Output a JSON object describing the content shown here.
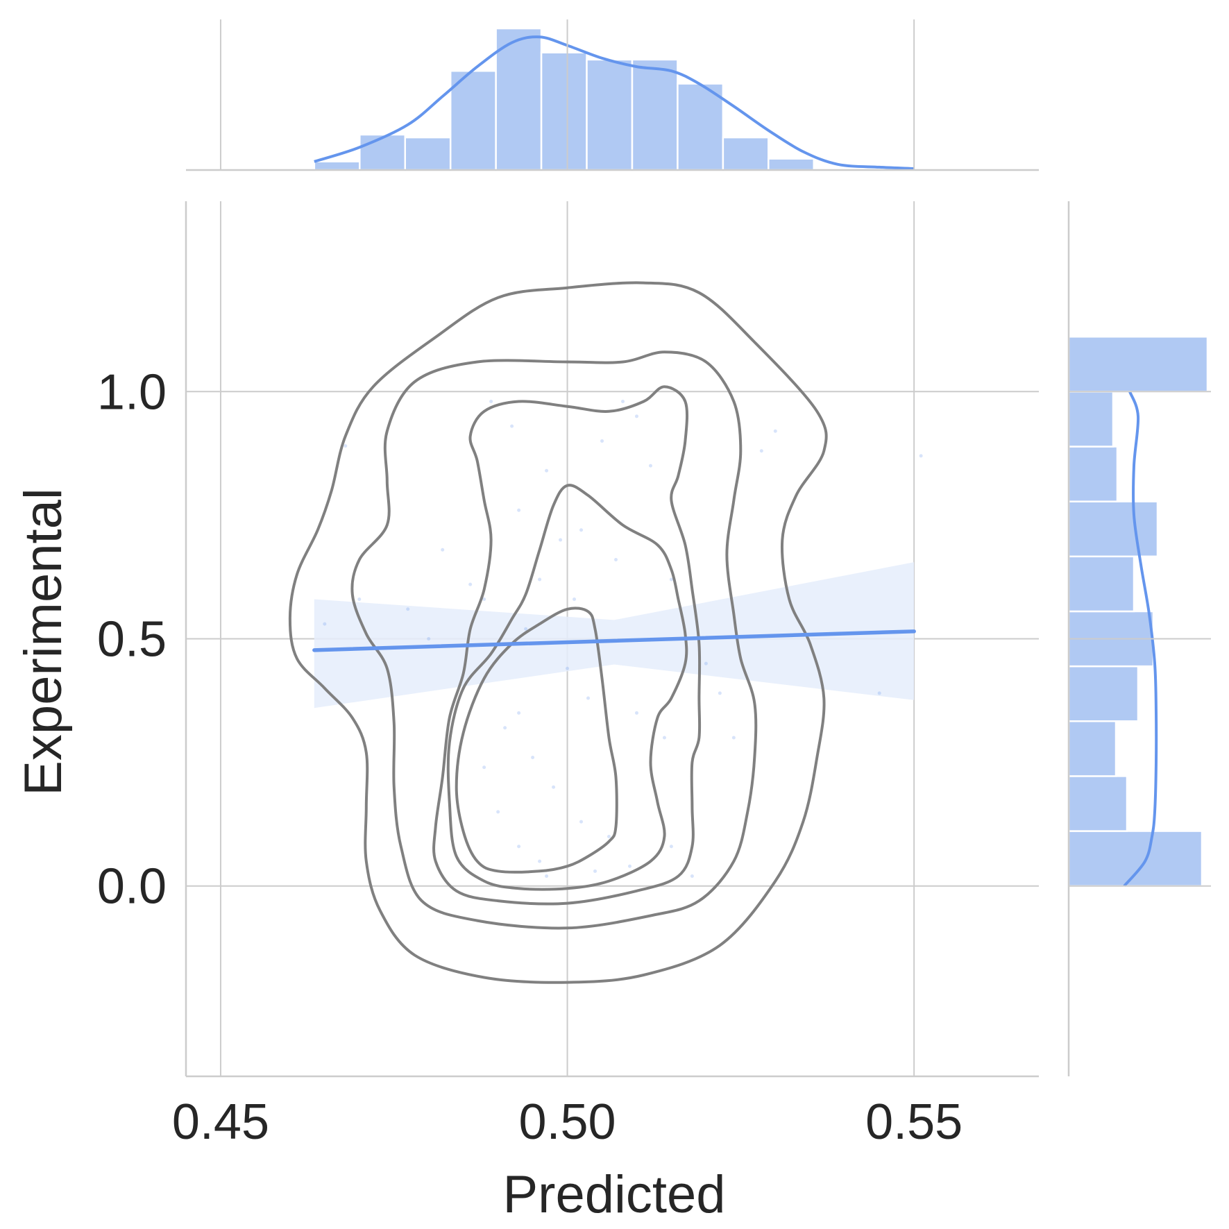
{
  "chart_data": {
    "type": "scatter",
    "variant": "joint-plot-kde-regression",
    "xlabel": "Predicted",
    "ylabel": "Experimental",
    "xlim": [
      0.445,
      0.568
    ],
    "ylim": [
      -0.385,
      1.385
    ],
    "x_ticks": [
      0.45,
      0.5,
      0.55
    ],
    "x_tick_labels": [
      "0.45",
      "0.50",
      "0.55"
    ],
    "y_ticks": [
      0.0,
      0.5,
      1.0
    ],
    "y_tick_labels": [
      "0.0",
      "0.5",
      "1.0"
    ],
    "grid": true,
    "colors": {
      "accent": "#6495ED",
      "hist_fill": "#B0C9F3",
      "ci_band": "#E5EDFB",
      "contour": "#808080",
      "grid": "#CCCCCC",
      "text": "#262626"
    },
    "regression": {
      "x_range": [
        0.4635,
        0.55
      ],
      "y_at_start": 0.477,
      "y_at_end": 0.515,
      "ci_at_start": [
        0.36,
        0.58
      ],
      "ci_at_middle": [
        0.448,
        0.538
      ],
      "ci_at_end": [
        0.376,
        0.655
      ]
    },
    "kde_contours": [
      [
        [
          0.5,
          1.21
        ],
        [
          0.511,
          1.22
        ],
        [
          0.519,
          1.2
        ],
        [
          0.527,
          1.1
        ],
        [
          0.536,
          0.96
        ],
        [
          0.537,
          0.88
        ],
        [
          0.533,
          0.79
        ],
        [
          0.531,
          0.7
        ],
        [
          0.532,
          0.58
        ],
        [
          0.535,
          0.49
        ],
        [
          0.537,
          0.38
        ],
        [
          0.536,
          0.26
        ],
        [
          0.534,
          0.13
        ],
        [
          0.53,
          0.01
        ],
        [
          0.522,
          -0.12
        ],
        [
          0.511,
          -0.18
        ],
        [
          0.5,
          -0.195
        ],
        [
          0.488,
          -0.185
        ],
        [
          0.478,
          -0.14
        ],
        [
          0.473,
          -0.05
        ],
        [
          0.471,
          0.05
        ],
        [
          0.471,
          0.16
        ],
        [
          0.471,
          0.27
        ],
        [
          0.469,
          0.34
        ],
        [
          0.465,
          0.4
        ],
        [
          0.461,
          0.46
        ],
        [
          0.46,
          0.54
        ],
        [
          0.461,
          0.63
        ],
        [
          0.464,
          0.72
        ],
        [
          0.466,
          0.8
        ],
        [
          0.468,
          0.91
        ],
        [
          0.472,
          1.01
        ],
        [
          0.481,
          1.11
        ],
        [
          0.49,
          1.19
        ],
        [
          0.5,
          1.21
        ]
      ],
      [
        [
          0.5,
          1.06
        ],
        [
          0.508,
          1.06
        ],
        [
          0.514,
          1.08
        ],
        [
          0.52,
          1.06
        ],
        [
          0.524,
          0.98
        ],
        [
          0.525,
          0.88
        ],
        [
          0.524,
          0.78
        ],
        [
          0.523,
          0.67
        ],
        [
          0.524,
          0.55
        ],
        [
          0.525,
          0.46
        ],
        [
          0.527,
          0.37
        ],
        [
          0.527,
          0.26
        ],
        [
          0.526,
          0.15
        ],
        [
          0.524,
          0.05
        ],
        [
          0.519,
          -0.03
        ],
        [
          0.512,
          -0.06
        ],
        [
          0.5,
          -0.085
        ],
        [
          0.487,
          -0.07
        ],
        [
          0.479,
          -0.03
        ],
        [
          0.476,
          0.08
        ],
        [
          0.475,
          0.2
        ],
        [
          0.475,
          0.33
        ],
        [
          0.474,
          0.44
        ],
        [
          0.471,
          0.51
        ],
        [
          0.469,
          0.59
        ],
        [
          0.47,
          0.66
        ],
        [
          0.474,
          0.73
        ],
        [
          0.474,
          0.82
        ],
        [
          0.474,
          0.92
        ],
        [
          0.478,
          1.02
        ],
        [
          0.487,
          1.06
        ],
        [
          0.5,
          1.06
        ]
      ],
      [
        [
          0.5,
          0.97
        ],
        [
          0.506,
          0.96
        ],
        [
          0.511,
          0.98
        ],
        [
          0.514,
          1.01
        ],
        [
          0.517,
          0.98
        ],
        [
          0.517,
          0.9
        ],
        [
          0.516,
          0.83
        ],
        [
          0.515,
          0.78
        ],
        [
          0.517,
          0.69
        ],
        [
          0.518,
          0.6
        ],
        [
          0.519,
          0.49
        ],
        [
          0.519,
          0.38
        ],
        [
          0.519,
          0.3
        ],
        [
          0.518,
          0.25
        ],
        [
          0.518,
          0.16
        ],
        [
          0.518,
          0.08
        ],
        [
          0.516,
          0.02
        ],
        [
          0.51,
          -0.01
        ],
        [
          0.5,
          -0.035
        ],
        [
          0.49,
          -0.03
        ],
        [
          0.484,
          -0.01
        ],
        [
          0.481,
          0.05
        ],
        [
          0.481,
          0.12
        ],
        [
          0.482,
          0.22
        ],
        [
          0.483,
          0.34
        ],
        [
          0.485,
          0.43
        ],
        [
          0.486,
          0.52
        ],
        [
          0.488,
          0.6
        ],
        [
          0.489,
          0.7
        ],
        [
          0.488,
          0.78
        ],
        [
          0.487,
          0.86
        ],
        [
          0.486,
          0.91
        ],
        [
          0.488,
          0.96
        ],
        [
          0.493,
          0.98
        ],
        [
          0.5,
          0.97
        ]
      ],
      [
        [
          0.5,
          0.81
        ],
        [
          0.503,
          0.79
        ],
        [
          0.508,
          0.73
        ],
        [
          0.513,
          0.69
        ],
        [
          0.515,
          0.64
        ],
        [
          0.516,
          0.58
        ],
        [
          0.517,
          0.51
        ],
        [
          0.517,
          0.45
        ],
        [
          0.515,
          0.38
        ],
        [
          0.513,
          0.34
        ],
        [
          0.512,
          0.25
        ],
        [
          0.513,
          0.17
        ],
        [
          0.514,
          0.1
        ],
        [
          0.512,
          0.05
        ],
        [
          0.506,
          0.01
        ],
        [
          0.5,
          -0.005
        ],
        [
          0.493,
          -0.005
        ],
        [
          0.488,
          0.01
        ],
        [
          0.484,
          0.06
        ],
        [
          0.483,
          0.17
        ],
        [
          0.483,
          0.29
        ],
        [
          0.485,
          0.4
        ],
        [
          0.489,
          0.47
        ],
        [
          0.492,
          0.54
        ],
        [
          0.494,
          0.59
        ],
        [
          0.496,
          0.68
        ],
        [
          0.498,
          0.77
        ],
        [
          0.5,
          0.81
        ]
      ],
      [
        [
          0.5,
          0.56
        ],
        [
          0.503,
          0.555
        ],
        [
          0.504,
          0.52
        ],
        [
          0.505,
          0.42
        ],
        [
          0.506,
          0.3
        ],
        [
          0.507,
          0.22
        ],
        [
          0.507,
          0.12
        ],
        [
          0.506,
          0.09
        ],
        [
          0.503,
          0.06
        ],
        [
          0.5,
          0.04
        ],
        [
          0.496,
          0.03
        ],
        [
          0.49,
          0.03
        ],
        [
          0.487,
          0.05
        ],
        [
          0.485,
          0.11
        ],
        [
          0.484,
          0.2
        ],
        [
          0.485,
          0.31
        ],
        [
          0.488,
          0.42
        ],
        [
          0.492,
          0.49
        ],
        [
          0.496,
          0.53
        ],
        [
          0.5,
          0.56
        ]
      ]
    ],
    "scatter_points_approx": [
      [
        0.489,
        0.98
      ],
      [
        0.492,
        0.93
      ],
      [
        0.497,
        0.84
      ],
      [
        0.505,
        0.9
      ],
      [
        0.508,
        0.98
      ],
      [
        0.51,
        0.95
      ],
      [
        0.493,
        0.76
      ],
      [
        0.499,
        0.7
      ],
      [
        0.502,
        0.72
      ],
      [
        0.507,
        0.66
      ],
      [
        0.515,
        0.62
      ],
      [
        0.486,
        0.61
      ],
      [
        0.482,
        0.68
      ],
      [
        0.488,
        0.58
      ],
      [
        0.494,
        0.52
      ],
      [
        0.5,
        0.44
      ],
      [
        0.503,
        0.38
      ],
      [
        0.51,
        0.35
      ],
      [
        0.514,
        0.3
      ],
      [
        0.491,
        0.32
      ],
      [
        0.495,
        0.26
      ],
      [
        0.498,
        0.2
      ],
      [
        0.502,
        0.13
      ],
      [
        0.506,
        0.1
      ],
      [
        0.49,
        0.15
      ],
      [
        0.493,
        0.08
      ],
      [
        0.496,
        0.05
      ],
      [
        0.509,
        0.04
      ],
      [
        0.515,
        0.08
      ],
      [
        0.518,
        0.02
      ],
      [
        0.48,
        0.5
      ],
      [
        0.477,
        0.56
      ],
      [
        0.47,
        0.58
      ],
      [
        0.465,
        0.53
      ],
      [
        0.485,
        0.4
      ],
      [
        0.493,
        0.35
      ],
      [
        0.52,
        0.45
      ],
      [
        0.522,
        0.39
      ],
      [
        0.524,
        0.3
      ],
      [
        0.53,
        0.92
      ],
      [
        0.528,
        0.88
      ],
      [
        0.468,
        0.89
      ],
      [
        0.551,
        0.87
      ],
      [
        0.545,
        0.39
      ],
      [
        0.512,
        0.85
      ],
      [
        0.496,
        0.62
      ],
      [
        0.501,
        0.58
      ],
      [
        0.497,
        0.02
      ],
      [
        0.504,
        0.03
      ],
      [
        0.488,
        0.24
      ]
    ],
    "x_marginal": {
      "bins_start": 0.4635,
      "bin_width": 0.00655,
      "relative_heights": [
        0.06,
        0.25,
        0.23,
        0.7,
        1.0,
        0.83,
        0.78,
        0.78,
        0.61,
        0.23,
        0.08
      ],
      "kde": [
        [
          0.4635,
          0.06
        ],
        [
          0.47,
          0.16
        ],
        [
          0.477,
          0.32
        ],
        [
          0.482,
          0.52
        ],
        [
          0.487,
          0.73
        ],
        [
          0.492,
          0.9
        ],
        [
          0.496,
          0.94
        ],
        [
          0.5,
          0.88
        ],
        [
          0.505,
          0.79
        ],
        [
          0.51,
          0.73
        ],
        [
          0.515,
          0.7
        ],
        [
          0.519,
          0.61
        ],
        [
          0.524,
          0.45
        ],
        [
          0.529,
          0.28
        ],
        [
          0.534,
          0.13
        ],
        [
          0.539,
          0.04
        ],
        [
          0.545,
          0.02
        ],
        [
          0.55,
          0.01
        ]
      ]
    },
    "y_marginal": {
      "bins_start": 0.0,
      "bin_width": 0.1111,
      "relative_heights": [
        0.96,
        0.42,
        0.34,
        0.5,
        0.61,
        0.47,
        0.64,
        0.35,
        0.32,
        1.0
      ],
      "kde": [
        [
          0.0,
          0.4
        ],
        [
          0.05,
          0.55
        ],
        [
          0.1,
          0.6
        ],
        [
          0.15,
          0.62
        ],
        [
          0.25,
          0.63
        ],
        [
          0.35,
          0.63
        ],
        [
          0.45,
          0.62
        ],
        [
          0.55,
          0.58
        ],
        [
          0.65,
          0.52
        ],
        [
          0.75,
          0.47
        ],
        [
          0.85,
          0.47
        ],
        [
          0.95,
          0.5
        ],
        [
          1.0,
          0.44
        ]
      ]
    }
  }
}
